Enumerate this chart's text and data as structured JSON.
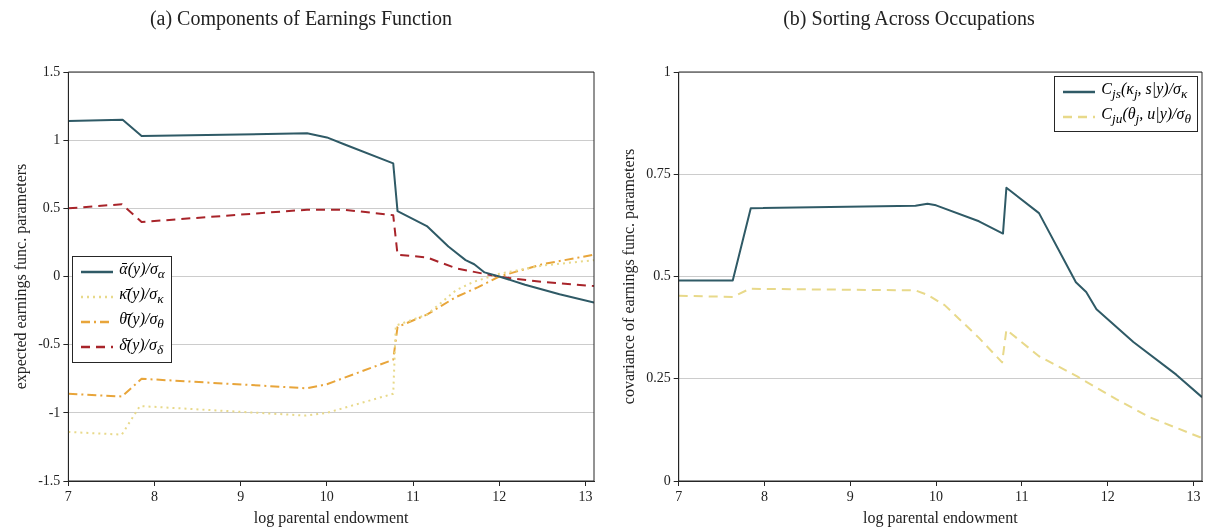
{
  "chart_data": [
    {
      "type": "line",
      "title": "(a) Components of Earnings Function",
      "xlabel": "log parental endowment",
      "ylabel": "expected earnings func. parameters",
      "xlim": [
        7,
        13.1
      ],
      "xticks": [
        7,
        8,
        9,
        10,
        11,
        12,
        13
      ],
      "ylim": [
        -1.5,
        1.5
      ],
      "yticks": [
        -1.5,
        -1,
        -0.5,
        0,
        0.5,
        1,
        1.5
      ],
      "grid": "y",
      "legend": "left",
      "series": [
        {
          "name": "ᾱ(y)/σ$_{α}$",
          "color": "#2f5a66",
          "line_style": "solid",
          "x": [
            7,
            7.63,
            7.85,
            9.77,
            10,
            10.2,
            10.77,
            10.82,
            11.16,
            11.41,
            11.61,
            11.71,
            11.83,
            12,
            12.3,
            12.7,
            13.1
          ],
          "values": [
            1.14,
            1.15,
            1.03,
            1.05,
            1.02,
            0.97,
            0.83,
            0.48,
            0.37,
            0.22,
            0.12,
            0.09,
            0.03,
            0.0,
            -0.06,
            -0.13,
            -0.19
          ]
        },
        {
          "name": "κ̄(y)/σ$_{κ}$",
          "color": "#e8d98a",
          "line_style": "dotted",
          "x": [
            7,
            7.62,
            7.83,
            9.75,
            10,
            10.77,
            10.8,
            11.16,
            11.5,
            11.7,
            12,
            12.5,
            13.1
          ],
          "values": [
            -1.14,
            -1.16,
            -0.95,
            -1.02,
            -1.0,
            -0.86,
            -0.36,
            -0.28,
            -0.1,
            -0.04,
            0.02,
            0.08,
            0.12
          ]
        },
        {
          "name": "θ̄(y)/σ$_{θ}$",
          "color": "#e8a53a",
          "line_style": "dashdot",
          "x": [
            7,
            7.62,
            7.85,
            9.77,
            10,
            10.77,
            10.82,
            11.16,
            11.5,
            11.75,
            12,
            12.5,
            13.1
          ],
          "values": [
            -0.86,
            -0.88,
            -0.75,
            -0.82,
            -0.79,
            -0.61,
            -0.37,
            -0.28,
            -0.15,
            -0.08,
            0.0,
            0.09,
            0.16
          ]
        },
        {
          "name": "δ̄(y)/σ$_{δ}$",
          "color": "#a8242a",
          "line_style": "dashed",
          "x": [
            7,
            7.62,
            7.85,
            9.77,
            10.2,
            10.77,
            10.82,
            11.16,
            11.5,
            11.9,
            12.1,
            12.5,
            13.1
          ],
          "values": [
            0.5,
            0.53,
            0.4,
            0.49,
            0.49,
            0.45,
            0.16,
            0.14,
            0.06,
            0.01,
            -0.01,
            -0.04,
            -0.07
          ]
        }
      ]
    },
    {
      "type": "line",
      "title": "(b) Sorting Across Occupations",
      "xlabel": "log parental endowment",
      "ylabel": "covariance of earnings func. parameters",
      "xlim": [
        7,
        13.1
      ],
      "xticks": [
        7,
        8,
        9,
        10,
        11,
        12,
        13
      ],
      "ylim": [
        0,
        1
      ],
      "yticks": [
        0,
        0.25,
        0.5,
        0.75,
        1
      ],
      "grid": "y",
      "legend": "top right",
      "series": [
        {
          "name": "C$_{js}$(κ$_{j}$, s|y)/σ$_{κ}$",
          "color": "#2f5a66",
          "line_style": "solid",
          "x": [
            7,
            7.63,
            7.84,
            9.76,
            9.9,
            10,
            10.5,
            10.78,
            10.82,
            11.2,
            11.63,
            11.75,
            11.87,
            12.3,
            12.8,
            13.1
          ],
          "values": [
            0.49,
            0.49,
            0.667,
            0.673,
            0.678,
            0.674,
            0.635,
            0.605,
            0.717,
            0.655,
            0.486,
            0.462,
            0.42,
            0.34,
            0.26,
            0.205
          ]
        },
        {
          "name": "C$_{ju}$(θ$_{j}$, u|y)/σ$_{θ}$",
          "color": "#e8d98a",
          "line_style": "dashed",
          "x": [
            7,
            7.63,
            7.83,
            9.76,
            9.9,
            10.1,
            10.5,
            10.77,
            10.82,
            11.2,
            11.65,
            12.1,
            12.5,
            13.1
          ],
          "values": [
            0.453,
            0.45,
            0.47,
            0.466,
            0.455,
            0.43,
            0.35,
            0.29,
            0.37,
            0.305,
            0.255,
            0.2,
            0.155,
            0.105
          ]
        }
      ]
    }
  ]
}
